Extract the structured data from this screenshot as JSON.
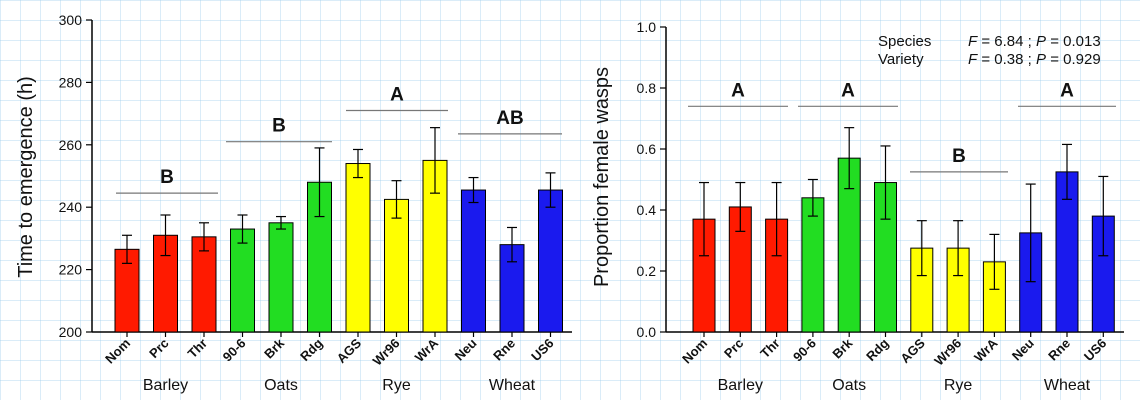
{
  "chart_data": [
    {
      "type": "bar",
      "ylabel": "Time to emergence (h)",
      "ylim": [
        200,
        300
      ],
      "yticks": [
        "200",
        "220",
        "240",
        "260",
        "280",
        "300"
      ],
      "categories": [
        "Nom",
        "Prc",
        "Thr",
        "90-6",
        "Brk",
        "Rdg",
        "AGS",
        "Wr96",
        "WrA",
        "Neu",
        "Rne",
        "US6"
      ],
      "groups": [
        "Barley",
        "Oats",
        "Rye",
        "Wheat"
      ],
      "group_colors": [
        "#ff1a00",
        "#22dd22",
        "#ffff00",
        "#1a1aee"
      ],
      "values": [
        226.5,
        231,
        230.5,
        233,
        235,
        248,
        254,
        242.5,
        255,
        245.5,
        228,
        245.5
      ],
      "errors": [
        4.5,
        6.5,
        4.5,
        4.5,
        2,
        11,
        4.5,
        6,
        10.5,
        4,
        5.5,
        5.5
      ],
      "significance": [
        {
          "label": "B",
          "line_y": 244.5
        },
        {
          "label": "B",
          "line_y": 261
        },
        {
          "label": "A",
          "line_y": 271
        },
        {
          "label": "AB",
          "line_y": 263.5
        }
      ],
      "grid": false
    },
    {
      "type": "bar",
      "ylabel": "Proportion female wasps",
      "ylim": [
        0,
        1
      ],
      "yticks": [
        "0.0",
        "0.2",
        "0.4",
        "0.6",
        "0.8",
        "1.0"
      ],
      "categories": [
        "Nom",
        "Prc",
        "Thr",
        "90-6",
        "Brk",
        "Rdg",
        "AGS",
        "Wr96",
        "WrA",
        "Neu",
        "Rne",
        "US6"
      ],
      "groups": [
        "Barley",
        "Oats",
        "Rye",
        "Wheat"
      ],
      "group_colors": [
        "#ff1a00",
        "#22dd22",
        "#ffff00",
        "#1a1aee"
      ],
      "values": [
        0.37,
        0.41,
        0.37,
        0.44,
        0.57,
        0.49,
        0.275,
        0.275,
        0.23,
        0.325,
        0.525,
        0.38
      ],
      "errors": [
        0.12,
        0.08,
        0.12,
        0.06,
        0.1,
        0.12,
        0.09,
        0.09,
        0.09,
        0.16,
        0.09,
        0.13
      ],
      "significance": [
        {
          "label": "A",
          "line_y": 0.74,
          "group_span": [
            0,
            0
          ]
        },
        {
          "label": "A",
          "line_y": 0.74,
          "group_span": [
            1,
            1
          ]
        },
        {
          "label": "B",
          "line_y": 0.525,
          "group_span": [
            2,
            2
          ]
        },
        {
          "label": "A",
          "line_y": 0.74,
          "group_span": [
            3,
            3
          ]
        }
      ],
      "stats": [
        {
          "name": "Species",
          "F_label": "F",
          "F": "6.84",
          "P_label": "P",
          "P": "0.013"
        },
        {
          "name": "Variety",
          "F_label": "F",
          "F": "0.38",
          "P_label": "P",
          "P": "0.929"
        }
      ],
      "grid": false
    }
  ]
}
